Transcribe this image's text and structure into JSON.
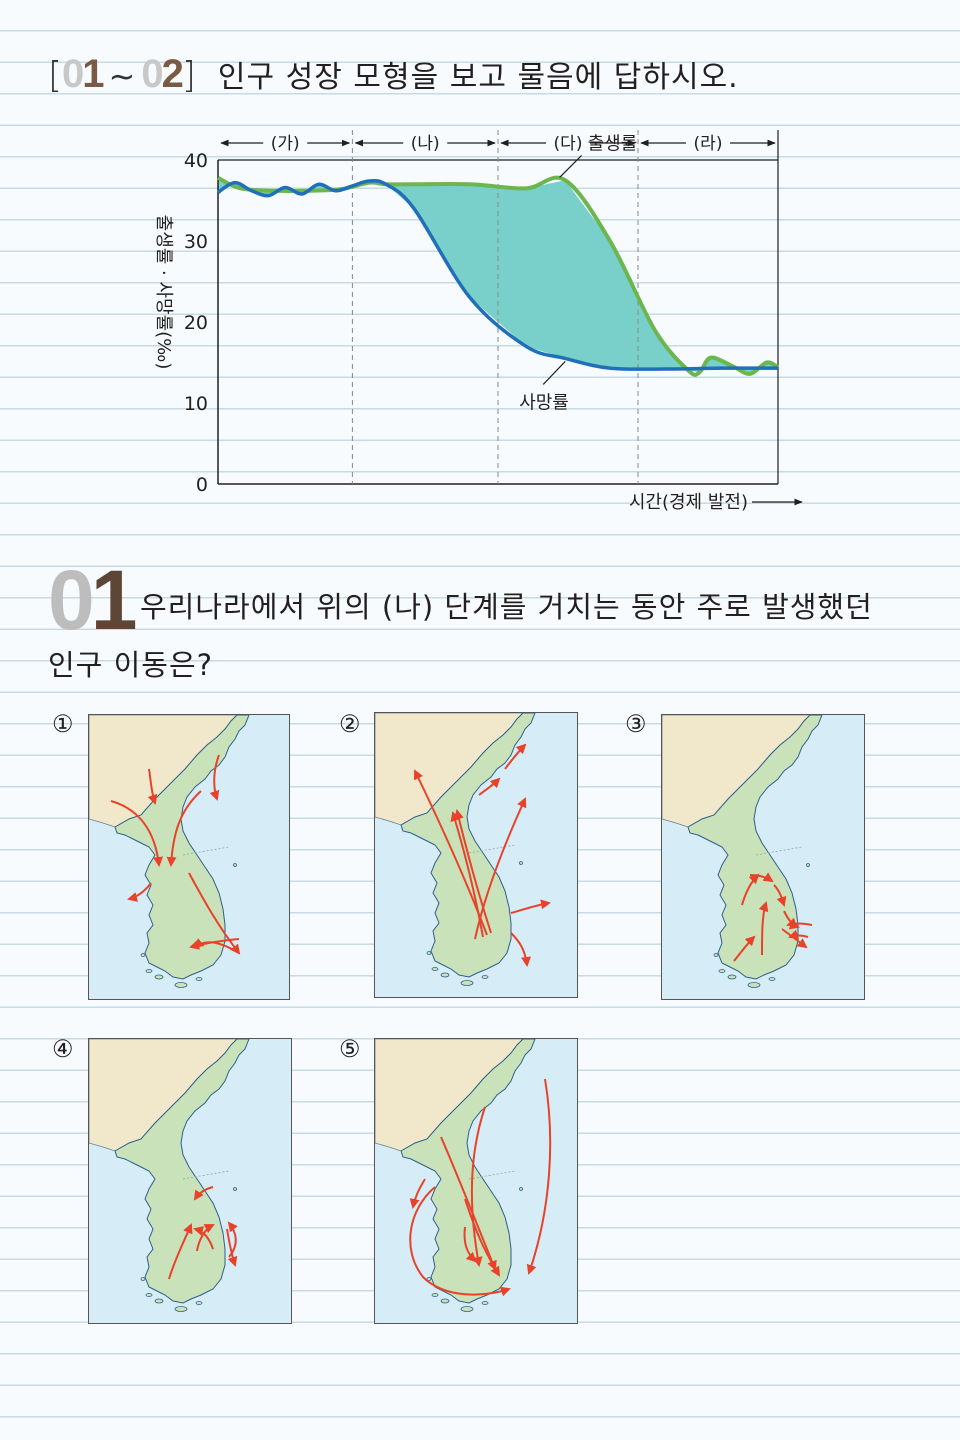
{
  "header": {
    "bracket_open": "[",
    "num_start_a": "0",
    "num_start_b": "1",
    "tilde": "~",
    "num_end_a": "0",
    "num_end_b": "2",
    "bracket_close": "]",
    "instruction": "인구 성장 모형을 보고 물음에 답하시오."
  },
  "chart_data": {
    "type": "line",
    "ylabel": "출생률 · 사망률(‰)",
    "xlabel": "시간(경제 발전)",
    "yticks": [
      "40",
      "30",
      "20",
      "10",
      "0"
    ],
    "ylim": [
      0,
      40
    ],
    "grid": false,
    "stages": [
      "(가)",
      "(나)",
      "(다)",
      "(라)"
    ],
    "series": [
      {
        "name": "출생률",
        "color": "#6db64e",
        "x": [
          0,
          0.04,
          0.1,
          0.16,
          0.22,
          0.27,
          0.3,
          0.35,
          0.45,
          0.55,
          0.62,
          0.7,
          0.78,
          0.84,
          0.86,
          0.88,
          0.92,
          0.95,
          0.98,
          1.0
        ],
        "values": [
          37.8,
          36.5,
          36.2,
          36.2,
          36.4,
          37.2,
          37,
          37,
          37,
          36.5,
          37.5,
          30,
          19,
          14,
          13.8,
          15.6,
          14.5,
          13.6,
          15.0,
          14.4
        ]
      },
      {
        "name": "사망률",
        "color": "#1f6fbb",
        "x": [
          0,
          0.03,
          0.06,
          0.09,
          0.12,
          0.15,
          0.18,
          0.21,
          0.24,
          0.27,
          0.3,
          0.35,
          0.45,
          0.55,
          0.62,
          0.7,
          0.8,
          0.9,
          1.0
        ],
        "values": [
          36,
          37.2,
          36.2,
          35.6,
          36.6,
          35.8,
          37,
          36.2,
          36.8,
          37.4,
          37,
          34,
          23,
          17,
          15.5,
          14.3,
          14.2,
          14.3,
          14.3
        ]
      }
    ]
  },
  "question": {
    "num_a": "0",
    "num_b": "1",
    "line1": "우리나라에서 위의 (나) 단계를 거치는 동안 주로 발생했던",
    "line2": "인구 이동은?"
  },
  "choices": [
    {
      "label": "①"
    },
    {
      "label": "②"
    },
    {
      "label": "③"
    },
    {
      "label": "④"
    },
    {
      "label": "⑤"
    }
  ],
  "colors": {
    "sea": "#d6ecf7",
    "land": "#c9e2b9",
    "neighbor_land": "#f1e8cc",
    "arrow": "#e8432a",
    "fill_between": "#79d0cb"
  }
}
